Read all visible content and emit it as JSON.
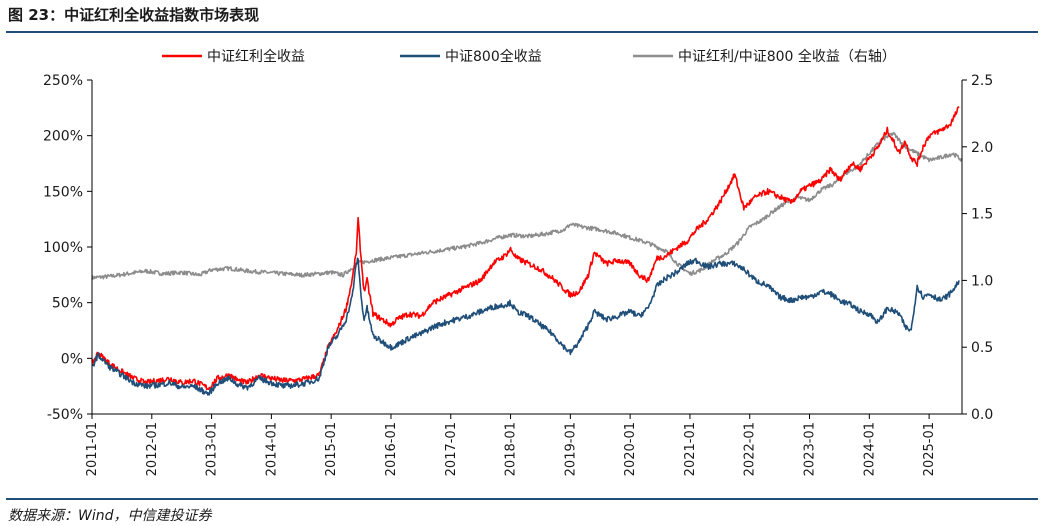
{
  "figure": {
    "title": "图 23：中证红利全收益指数市场表现",
    "source": "数据来源：Wind，中信建投证券"
  },
  "chart_data": {
    "type": "line",
    "title": "",
    "legend": {
      "placement": "top",
      "entries": [
        "中证红利全收益",
        "中证800全收益",
        "中证红利/中证800 全收益（右轴）"
      ]
    },
    "x_ticks": [
      "2011-01",
      "2012-01",
      "2013-01",
      "2014-01",
      "2015-01",
      "2016-01",
      "2017-01",
      "2018-01",
      "2019-01",
      "2020-01",
      "2021-01",
      "2022-01",
      "2023-01",
      "2024-01",
      "2025-01"
    ],
    "x_range": [
      2011.0,
      2025.55
    ],
    "y_left": {
      "range": [
        -50,
        250
      ],
      "ticks": [
        -50,
        0,
        50,
        100,
        150,
        200,
        250
      ],
      "tick_labels": [
        "-50%",
        "0%",
        "50%",
        "100%",
        "150%",
        "200%",
        "250%"
      ]
    },
    "y_right": {
      "range": [
        0.0,
        2.5
      ],
      "ticks": [
        0.0,
        0.5,
        1.0,
        1.5,
        2.0,
        2.5
      ],
      "tick_labels": [
        "0.0",
        "0.5",
        "1.0",
        "1.5",
        "2.0",
        "2.5"
      ]
    },
    "grid": false,
    "series": [
      {
        "name": "中证红利全收益",
        "axis": "left",
        "color": "#ff0000",
        "x": [
          2011.0,
          2011.1,
          2011.3,
          2011.5,
          2011.7,
          2011.9,
          2012.1,
          2012.3,
          2012.5,
          2012.7,
          2012.95,
          2013.1,
          2013.3,
          2013.45,
          2013.6,
          2013.8,
          2014.0,
          2014.2,
          2014.4,
          2014.6,
          2014.8,
          2014.95,
          2015.1,
          2015.25,
          2015.35,
          2015.42,
          2015.45,
          2015.5,
          2015.55,
          2015.6,
          2015.7,
          2015.85,
          2016.0,
          2016.1,
          2016.3,
          2016.5,
          2016.7,
          2016.9,
          2017.1,
          2017.3,
          2017.5,
          2017.7,
          2017.9,
          2018.0,
          2018.1,
          2018.3,
          2018.5,
          2018.7,
          2018.9,
          2019.0,
          2019.15,
          2019.3,
          2019.4,
          2019.6,
          2019.8,
          2020.0,
          2020.15,
          2020.3,
          2020.45,
          2020.6,
          2020.8,
          2020.95,
          2021.1,
          2021.3,
          2021.5,
          2021.65,
          2021.75,
          2021.9,
          2022.1,
          2022.3,
          2022.5,
          2022.7,
          2022.85,
          2023.0,
          2023.2,
          2023.35,
          2023.5,
          2023.7,
          2023.85,
          2024.0,
          2024.15,
          2024.3,
          2024.5,
          2024.6,
          2024.7,
          2024.8,
          2024.9,
          2025.0,
          2025.2,
          2025.35,
          2025.45,
          2025.5
        ],
        "values": [
          -5,
          5,
          -5,
          -12,
          -18,
          -22,
          -20,
          -18,
          -22,
          -20,
          -27,
          -18,
          -15,
          -20,
          -22,
          -15,
          -18,
          -20,
          -20,
          -18,
          -15,
          10,
          25,
          45,
          70,
          95,
          125,
          90,
          60,
          70,
          40,
          35,
          30,
          35,
          40,
          38,
          50,
          55,
          60,
          65,
          70,
          85,
          92,
          98,
          90,
          85,
          80,
          72,
          62,
          57,
          60,
          75,
          95,
          85,
          88,
          85,
          75,
          70,
          90,
          92,
          100,
          105,
          115,
          125,
          140,
          155,
          165,
          135,
          145,
          150,
          145,
          140,
          150,
          155,
          160,
          170,
          160,
          175,
          170,
          180,
          190,
          205,
          185,
          195,
          180,
          175,
          190,
          200,
          205,
          210,
          220,
          225
        ]
      },
      {
        "name": "中证800全收益",
        "axis": "left",
        "color": "#1f4e79",
        "x": [
          2011.0,
          2011.1,
          2011.3,
          2011.5,
          2011.7,
          2011.9,
          2012.1,
          2012.3,
          2012.5,
          2012.7,
          2012.95,
          2013.1,
          2013.3,
          2013.45,
          2013.6,
          2013.8,
          2014.0,
          2014.2,
          2014.4,
          2014.6,
          2014.8,
          2014.95,
          2015.1,
          2015.25,
          2015.35,
          2015.42,
          2015.45,
          2015.5,
          2015.55,
          2015.6,
          2015.7,
          2015.85,
          2016.0,
          2016.1,
          2016.3,
          2016.5,
          2016.7,
          2016.9,
          2017.1,
          2017.3,
          2017.5,
          2017.7,
          2017.9,
          2018.0,
          2018.1,
          2018.3,
          2018.5,
          2018.7,
          2018.9,
          2019.0,
          2019.15,
          2019.3,
          2019.4,
          2019.6,
          2019.8,
          2020.0,
          2020.15,
          2020.3,
          2020.45,
          2020.6,
          2020.8,
          2020.95,
          2021.1,
          2021.3,
          2021.5,
          2021.65,
          2021.75,
          2021.9,
          2022.1,
          2022.3,
          2022.5,
          2022.7,
          2022.85,
          2023.0,
          2023.2,
          2023.35,
          2023.5,
          2023.7,
          2023.85,
          2024.0,
          2024.15,
          2024.3,
          2024.5,
          2024.6,
          2024.7,
          2024.8,
          2024.9,
          2025.0,
          2025.2,
          2025.35,
          2025.45,
          2025.5
        ],
        "values": [
          -8,
          3,
          -8,
          -15,
          -22,
          -25,
          -24,
          -22,
          -26,
          -25,
          -32,
          -22,
          -18,
          -24,
          -26,
          -18,
          -22,
          -25,
          -24,
          -22,
          -18,
          10,
          20,
          35,
          55,
          85,
          90,
          55,
          35,
          45,
          20,
          15,
          10,
          12,
          18,
          22,
          28,
          32,
          35,
          38,
          42,
          46,
          48,
          50,
          42,
          38,
          30,
          22,
          10,
          5,
          15,
          30,
          42,
          35,
          38,
          42,
          38,
          45,
          65,
          72,
          78,
          85,
          88,
          82,
          85,
          85,
          85,
          80,
          70,
          65,
          55,
          52,
          55,
          55,
          60,
          58,
          52,
          48,
          42,
          40,
          32,
          45,
          40,
          28,
          25,
          65,
          55,
          58,
          52,
          58,
          65,
          70
        ]
      },
      {
        "name": "中证红利/中证800 全收益（右轴）",
        "axis": "right",
        "color": "#8c8c8c",
        "x": [
          2011.0,
          2011.3,
          2011.6,
          2011.9,
          2012.2,
          2012.5,
          2012.8,
          2013.0,
          2013.3,
          2013.6,
          2013.9,
          2014.2,
          2014.5,
          2014.8,
          2015.0,
          2015.2,
          2015.45,
          2015.7,
          2016.0,
          2016.3,
          2016.6,
          2016.9,
          2017.2,
          2017.5,
          2017.8,
          2018.0,
          2018.3,
          2018.6,
          2018.9,
          2019.0,
          2019.2,
          2019.5,
          2019.8,
          2020.0,
          2020.3,
          2020.6,
          2020.8,
          2021.0,
          2021.2,
          2021.4,
          2021.6,
          2021.8,
          2022.0,
          2022.2,
          2022.4,
          2022.6,
          2022.8,
          2023.0,
          2023.2,
          2023.4,
          2023.6,
          2023.8,
          2024.0,
          2024.2,
          2024.4,
          2024.6,
          2024.8,
          2025.0,
          2025.2,
          2025.4,
          2025.55
        ],
        "values": [
          1.02,
          1.03,
          1.05,
          1.07,
          1.05,
          1.06,
          1.04,
          1.08,
          1.09,
          1.07,
          1.06,
          1.05,
          1.04,
          1.05,
          1.06,
          1.04,
          1.13,
          1.15,
          1.17,
          1.19,
          1.21,
          1.23,
          1.25,
          1.28,
          1.32,
          1.34,
          1.33,
          1.35,
          1.38,
          1.42,
          1.4,
          1.38,
          1.35,
          1.32,
          1.28,
          1.22,
          1.12,
          1.05,
          1.08,
          1.15,
          1.2,
          1.28,
          1.4,
          1.45,
          1.52,
          1.58,
          1.62,
          1.6,
          1.68,
          1.72,
          1.8,
          1.85,
          1.95,
          2.05,
          2.1,
          2.0,
          1.95,
          1.9,
          1.92,
          1.95,
          1.9
        ]
      }
    ]
  }
}
